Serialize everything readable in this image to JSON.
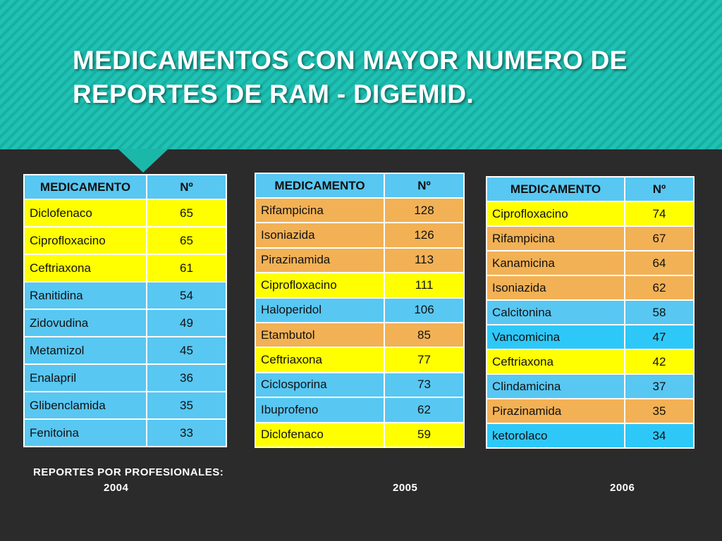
{
  "title": "MEDICAMENTOS CON MAYOR NUMERO DE REPORTES DE RAM - DIGEMID.",
  "tables": [
    {
      "header": [
        "MEDICAMENTO",
        "Nº"
      ],
      "rows": [
        {
          "name": "Diclofenaco",
          "n": "65",
          "color": "yellow"
        },
        {
          "name": "Ciprofloxacino",
          "n": "65",
          "color": "yellow"
        },
        {
          "name": "Ceftriaxona",
          "n": "61",
          "color": "yellow"
        },
        {
          "name": "Ranitidina",
          "n": "54",
          "color": "blue"
        },
        {
          "name": "Zidovudina",
          "n": "49",
          "color": "blue"
        },
        {
          "name": "Metamizol",
          "n": "45",
          "color": "blue"
        },
        {
          "name": "Enalapril",
          "n": "36",
          "color": "blue"
        },
        {
          "name": "Glibenclamida",
          "n": "35",
          "color": "blue"
        },
        {
          "name": "Fenitoina",
          "n": "33",
          "color": "blue"
        }
      ]
    },
    {
      "header": [
        "MEDICAMENTO",
        "Nº"
      ],
      "rows": [
        {
          "name": "Rifampicina",
          "n": "128",
          "color": "orange"
        },
        {
          "name": "Isoniazida",
          "n": "126",
          "color": "orange"
        },
        {
          "name": "Pirazinamida",
          "n": "113",
          "color": "orange"
        },
        {
          "name": "Ciprofloxacino",
          "n": "111",
          "color": "yellow"
        },
        {
          "name": "Haloperidol",
          "n": "106",
          "color": "blue"
        },
        {
          "name": "Etambutol",
          "n": "85",
          "color": "orange"
        },
        {
          "name": "Ceftriaxona",
          "n": "77",
          "color": "yellow"
        },
        {
          "name": "Ciclosporina",
          "n": "73",
          "color": "blue"
        },
        {
          "name": "Ibuprofeno",
          "n": "62",
          "color": "blue"
        },
        {
          "name": "Diclofenaco",
          "n": "59",
          "color": "yellow"
        }
      ]
    },
    {
      "header": [
        "MEDICAMENTO",
        "Nº"
      ],
      "rows": [
        {
          "name": "Ciprofloxacino",
          "n": "74",
          "color": "yellow"
        },
        {
          "name": "Rifampicina",
          "n": "67",
          "color": "orange"
        },
        {
          "name": "Kanamicina",
          "n": "64",
          "color": "orange"
        },
        {
          "name": "Isoniazida",
          "n": "62",
          "color": "orange"
        },
        {
          "name": "Calcitonina",
          "n": "58",
          "color": "blue"
        },
        {
          "name": "Vancomicina",
          "n": "47",
          "color": "cyan"
        },
        {
          "name": "Ceftriaxona",
          "n": "42",
          "color": "yellow"
        },
        {
          "name": "Clindamicina",
          "n": "37",
          "color": "blue"
        },
        {
          "name": "Pirazinamida",
          "n": "35",
          "color": "orange"
        },
        {
          "name": "ketorolaco",
          "n": "34",
          "color": "cyan"
        }
      ]
    }
  ],
  "footer": {
    "label": "REPORTES POR PROFESIONALES:",
    "years": [
      "2004",
      "2005",
      "2006"
    ]
  },
  "colors": {
    "banner": "#1fc1b3",
    "background": "#2b2b2b",
    "yellow": "#ffff00",
    "orange": "#f2b155",
    "blue": "#58c7f2",
    "cyan": "#2ec8f8"
  }
}
